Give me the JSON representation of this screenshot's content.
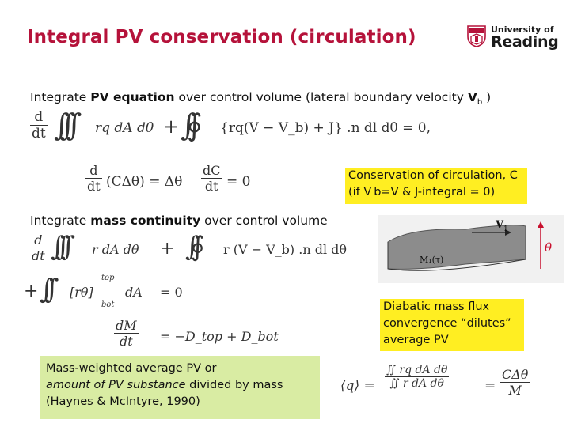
{
  "slide": {
    "title": "Integral PV conservation (circulation)",
    "logo": {
      "line1": "University of",
      "line2": "Reading"
    },
    "intro": {
      "prefix": "Integrate ",
      "bold": "PV equation",
      "middle": " over control volume (lateral boundary velocity ",
      "v": "V",
      "sub": "b",
      "suffix": " )"
    },
    "mass_line": {
      "prefix": "Integrate ",
      "bold": "mass continuity",
      "suffix": " over control volume"
    },
    "circulation_box": {
      "line1": "Conservation of circulation, C",
      "line2": "(if V b=V  &  J-integral = 0)"
    },
    "diabatic_box": {
      "line1": "Diabatic mass flux",
      "line2": "convergence “dilutes”",
      "line3": "average PV"
    },
    "mass_weighted_box": {
      "line1": "Mass-weighted average PV or",
      "line2_italic": "amount of PV substance",
      "line2_rest": " divided by mass",
      "line3": "(Haynes & McIntyre, 1990)"
    },
    "figure": {
      "v_label": "V",
      "v_sub": "1",
      "m_label": "M₁(τ)",
      "theta": "θ"
    },
    "equations": {
      "pv_integral": "rq dA dθ",
      "pv_flux": "{rq(V − V_b) + J} .n dl dθ = 0,",
      "circ_lhs": "(CΔθ) = Δθ",
      "circ_rhs": "= 0",
      "mass_term1": "r dA dθ",
      "mass_term2": "r (V − V_b) .n dl dθ",
      "mass_term3": "[rθ]",
      "mass_dA": "dA",
      "mass_eq0": "= 0",
      "top": "top",
      "bot": "bot",
      "dM_rhs": "= −D_top + D_bot",
      "avg_q": "⟨q⟩ =",
      "avg_num": "∬ rq dA dθ",
      "avg_den": "∬ r dA dθ",
      "avg_rhs_num": "CΔθ",
      "avg_rhs_den": "M"
    }
  }
}
